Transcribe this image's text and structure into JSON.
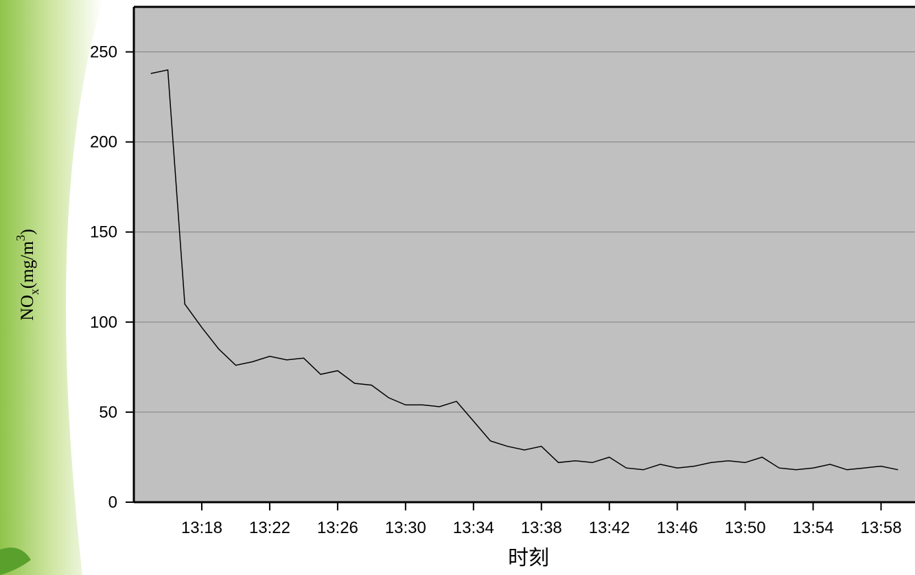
{
  "chart_data": {
    "type": "line",
    "x_label": "时刻",
    "y_label": [
      "NO",
      "x",
      "(mg/m",
      "3",
      ")"
    ],
    "x": [
      "13:15",
      "13:16",
      "13:17",
      "13:18",
      "13:19",
      "13:20",
      "13:21",
      "13:22",
      "13:23",
      "13:24",
      "13:25",
      "13:26",
      "13:27",
      "13:28",
      "13:29",
      "13:30",
      "13:31",
      "13:32",
      "13:33",
      "13:34",
      "13:35",
      "13:36",
      "13:37",
      "13:38",
      "13:39",
      "13:40",
      "13:41",
      "13:42",
      "13:43",
      "13:44",
      "13:45",
      "13:46",
      "13:47",
      "13:48",
      "13:49",
      "13:50",
      "13:51",
      "13:52",
      "13:53",
      "13:54",
      "13:55",
      "13:56",
      "13:57",
      "13:58",
      "13:59"
    ],
    "series": [
      {
        "color": "#000000",
        "values": [
          238,
          240,
          110,
          97,
          85,
          76,
          78,
          81,
          79,
          80,
          71,
          73,
          66,
          65,
          58,
          54,
          54,
          53,
          56,
          45,
          34,
          31,
          29,
          31,
          22,
          23,
          22,
          25,
          19,
          18,
          21,
          19,
          20,
          22,
          23,
          22,
          25,
          19,
          18,
          19,
          21,
          18,
          19,
          20,
          18
        ]
      }
    ],
    "xlim": [
      "13:14",
      "14:00"
    ],
    "xticks": [
      "13:18",
      "13:22",
      "13:26",
      "13:30",
      "13:34",
      "13:38",
      "13:42",
      "13:46",
      "13:50",
      "13:54",
      "13:58"
    ],
    "ylim": [
      0,
      275
    ],
    "yticks": [
      0,
      50,
      100,
      150,
      200,
      250
    ],
    "grid": true,
    "plot_background": "#c0c0c0"
  }
}
